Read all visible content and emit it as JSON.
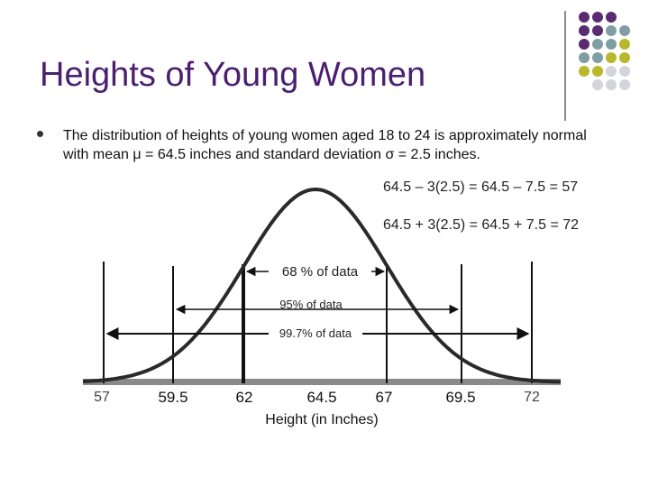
{
  "slide": {
    "title": "Heights of Young Women",
    "bullet": "The distribution of heights of young women aged 18 to 24 is approximately normal with mean μ = 64.5 inches and standard deviation σ = 2.5 inches."
  },
  "colors": {
    "title": "#4b1f6f",
    "dot_purple": "#5a2a72",
    "dot_teal": "#7f9ea3",
    "dot_olive": "#b8b82a",
    "dot_gray": "#d4d4dc"
  },
  "figure": {
    "eq1": "64.5 – 3(2.5) = 64.5 – 7.5 = 57",
    "eq2": "64.5 + 3(2.5) = 64.5 + 7.5 = 72",
    "label68": "68 % of data",
    "label95": "95% of data",
    "label997": "99.7% of data",
    "xlabel": "Height (in Inches)",
    "ticks": [
      "57",
      "59.5",
      "62",
      "64.5",
      "67",
      "69.5",
      "72"
    ]
  }
}
